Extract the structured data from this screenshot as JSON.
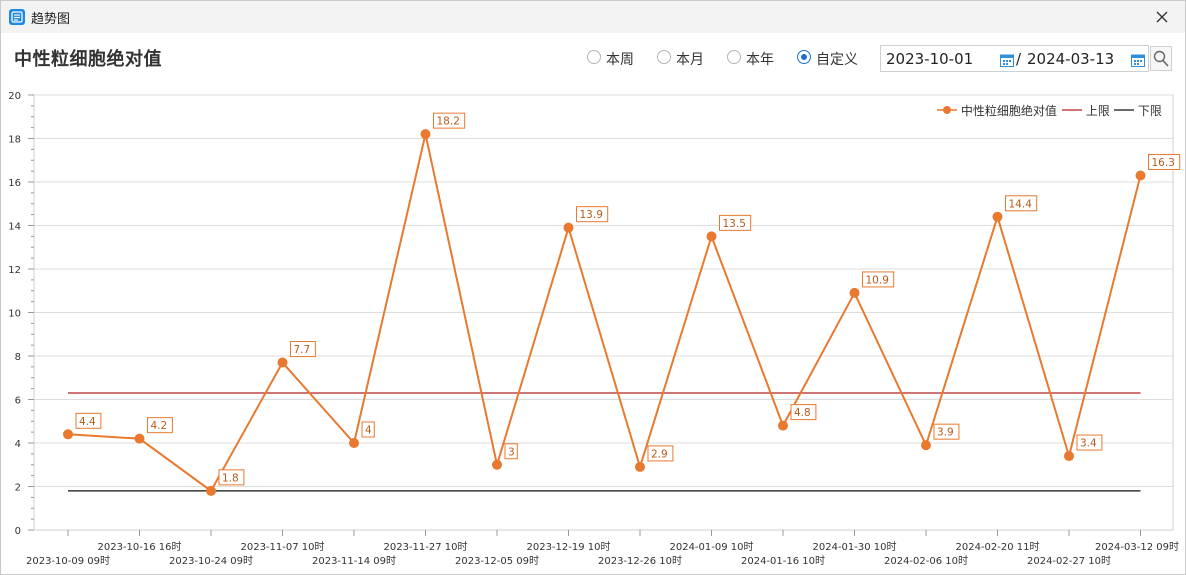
{
  "window": {
    "title": "趋势图",
    "icon": "trend-app-icon",
    "close_icon": "close-icon"
  },
  "header": {
    "title": "中性粒细胞绝对值"
  },
  "range_options": [
    {
      "label": "本周",
      "checked": false
    },
    {
      "label": "本月",
      "checked": false
    },
    {
      "label": "本年",
      "checked": false
    },
    {
      "label": "自定义",
      "checked": true
    }
  ],
  "date_range": {
    "start": "2023-10-01",
    "separator": "/",
    "end": "2024-03-13",
    "calendar_icon": "calendar-icon",
    "search_icon": "search-icon"
  },
  "colors": {
    "series": "#e8792f",
    "upper": "#b22222",
    "lower": "#111111",
    "grid": "#dedede",
    "accent": "#1f6fd1"
  },
  "chart_data": {
    "type": "line",
    "title": "",
    "xlabel": "",
    "ylabel": "",
    "ylim": [
      0,
      20
    ],
    "yticks": [
      0,
      2,
      4,
      6,
      8,
      10,
      12,
      14,
      16,
      18,
      20
    ],
    "grid": true,
    "legend_position": "top-right",
    "categories": [
      "2023-10-09 09时",
      "2023-10-16 16时",
      "2023-10-24 09时",
      "2023-11-07 10时",
      "2023-11-14 09时",
      "2023-11-27 10时",
      "2023-12-05 09时",
      "2023-12-19 10时",
      "2023-12-26 10时",
      "2024-01-09 10时",
      "2024-01-16 10时",
      "2024-01-30 10时",
      "2024-02-06 10时",
      "2024-02-20 11时",
      "2024-02-27 10时",
      "2024-03-12 09时"
    ],
    "series": [
      {
        "name": "中性粒细胞绝对值",
        "values": [
          4.4,
          4.2,
          1.8,
          7.7,
          4,
          18.2,
          3,
          13.9,
          2.9,
          13.5,
          4.8,
          10.9,
          3.9,
          14.4,
          3.4,
          16.3
        ],
        "labels": [
          "4.4",
          "4.2",
          "1.8",
          "7.7",
          "4",
          "18.2",
          "3",
          "13.9",
          "2.9",
          "13.5",
          "4.8",
          "10.9",
          "3.9",
          "14.4",
          "3.4",
          "16.3"
        ]
      },
      {
        "name": "上限",
        "value": 6.3
      },
      {
        "name": "下限",
        "value": 1.8
      }
    ]
  }
}
